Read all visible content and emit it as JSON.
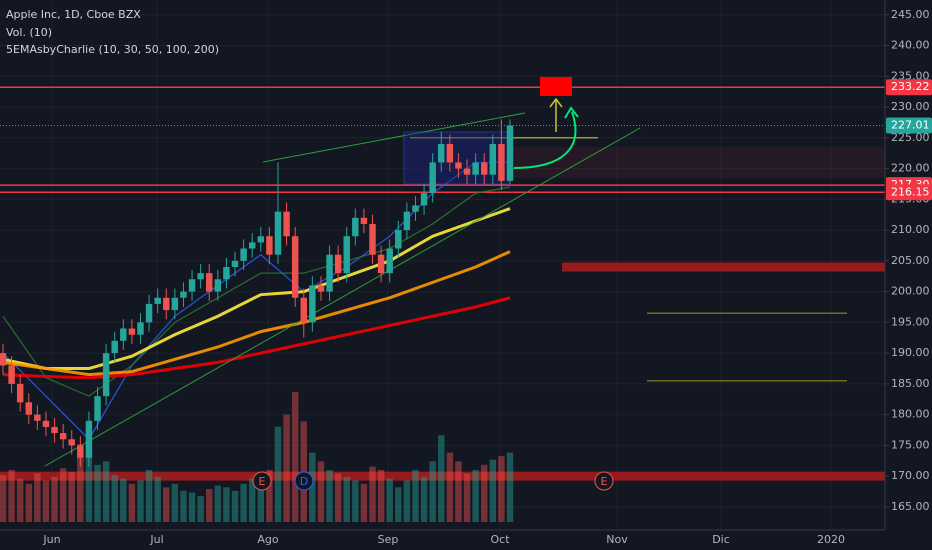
{
  "header": {
    "title": "Apple Inc, 1D, Cboe BZX",
    "volume_label": "Vol. (10)",
    "indicator_label": "5EMAsbyCharlie (10, 30, 50, 100, 200)"
  },
  "chart_data": {
    "type": "candlestick",
    "open": [
      190,
      188,
      185,
      182,
      180,
      179,
      178,
      177,
      176,
      175,
      173,
      179,
      183,
      190,
      192,
      194,
      193,
      195,
      198,
      199,
      197,
      199,
      200,
      202,
      203,
      200,
      202,
      204,
      205,
      207,
      208,
      209,
      206,
      213,
      209,
      199,
      195,
      201,
      200,
      206,
      203,
      209,
      212,
      211,
      206,
      203,
      207,
      210,
      213,
      214,
      216,
      221,
      224,
      221,
      220,
      219,
      221,
      219,
      224,
      218
    ],
    "high": [
      191.5,
      189.5,
      186.5,
      183.5,
      181.5,
      180.5,
      179.5,
      178.5,
      177.5,
      176.5,
      180.5,
      184.5,
      191.5,
      193.5,
      195.5,
      195.5,
      196.5,
      199.5,
      200.5,
      200.5,
      200.5,
      201.5,
      203.5,
      204.5,
      204.5,
      203.5,
      205.5,
      206.5,
      208.5,
      209.5,
      210.5,
      210.5,
      221,
      214.5,
      210.5,
      200.5,
      202.5,
      202.5,
      207.5,
      207.5,
      210.5,
      213.5,
      213.5,
      212.5,
      207.5,
      208.5,
      211.5,
      214.5,
      215.5,
      217.5,
      222.5,
      226,
      225.5,
      222.5,
      221.5,
      222.5,
      222.5,
      225.5,
      228,
      228
    ],
    "low": [
      186.5,
      183.5,
      180.5,
      178.5,
      177.5,
      176.5,
      175.5,
      174.5,
      173.5,
      171.5,
      171.5,
      177.5,
      181.5,
      188.5,
      190.5,
      191.5,
      191.5,
      193.5,
      196.5,
      195.5,
      195.5,
      197.5,
      198.5,
      200.5,
      198.5,
      198.5,
      200.5,
      202.5,
      203.5,
      205.5,
      206.5,
      204.5,
      204.5,
      207.5,
      197.5,
      192.5,
      193.5,
      198.5,
      198.5,
      201.5,
      201.5,
      207.5,
      209.5,
      204.5,
      201.5,
      201.5,
      205.5,
      208.5,
      211.5,
      212.5,
      214.5,
      219.5,
      219.5,
      218.5,
      217.5,
      217.5,
      217.5,
      217.5,
      216.5,
      217.5
    ],
    "close": [
      188,
      185,
      182,
      180,
      179,
      178,
      177,
      176,
      175,
      173,
      179,
      183,
      190,
      192,
      194,
      193,
      195,
      198,
      199,
      197,
      199,
      200,
      202,
      203,
      200,
      202,
      204,
      205,
      207,
      208,
      209,
      206,
      213,
      209,
      199,
      195,
      201,
      200,
      206,
      203,
      209,
      212,
      211,
      206,
      203,
      207,
      210,
      213,
      214,
      216,
      221,
      224,
      221,
      220,
      219,
      221,
      219,
      224,
      218,
      227
    ],
    "volume": [
      27,
      30,
      25,
      22,
      28,
      24,
      26,
      31,
      29,
      45,
      40,
      33,
      35,
      27,
      25,
      22,
      24,
      30,
      26,
      20,
      22,
      18,
      17,
      15,
      19,
      21,
      20,
      18,
      22,
      25,
      24,
      30,
      55,
      62,
      75,
      58,
      40,
      35,
      30,
      28,
      26,
      24,
      22,
      32,
      30,
      25,
      20,
      24,
      30,
      26,
      35,
      50,
      40,
      35,
      28,
      30,
      33,
      36,
      38,
      40
    ],
    "up_color": "#26a69a",
    "down_color": "#ef5350",
    "ema_x": [
      0,
      5,
      10,
      15,
      20,
      25,
      30,
      35,
      40,
      45,
      50,
      55,
      59
    ],
    "ema_series": [
      {
        "color": "#2962ff",
        "values": [
          190,
          183,
          176,
          188,
          196,
          201,
          206,
          200,
          204,
          209,
          216,
          221,
          221
        ]
      },
      {
        "color": "#2e7d32",
        "values": [
          196,
          186,
          183,
          188,
          195,
          199,
          203,
          203,
          205,
          207,
          211,
          216,
          217
        ]
      },
      {
        "color": "#ffeb3b",
        "values": [
          189,
          187.5,
          187.5,
          189.5,
          193,
          196,
          199.5,
          200,
          202.5,
          205,
          209,
          211.5,
          213.5
        ]
      },
      {
        "color": "#ff9800",
        "values": [
          188.5,
          187.5,
          186.5,
          187,
          189,
          191,
          193.5,
          195,
          197,
          199,
          201.5,
          204,
          206.5
        ]
      },
      {
        "color": "#f40000",
        "values": [
          186.5,
          186.2,
          186,
          186.5,
          187.5,
          188.5,
          190,
          191.5,
          193,
          194.5,
          196,
          197.5,
          199
        ]
      }
    ],
    "ylim": [
      160.6,
      247.4
    ],
    "yticks": [
      {
        "value": 165,
        "label": "165.00"
      },
      {
        "value": 170,
        "label": "170.00"
      },
      {
        "value": 175,
        "label": "175.00"
      },
      {
        "value": 180,
        "label": "180.00"
      },
      {
        "value": 185,
        "label": "185.00"
      },
      {
        "value": 190,
        "label": "190.00"
      },
      {
        "value": 195,
        "label": "195.00"
      },
      {
        "value": 200,
        "label": "200.00"
      },
      {
        "value": 205,
        "label": "205.00"
      },
      {
        "value": 210,
        "label": "210.00"
      },
      {
        "value": 215,
        "label": "215.00"
      },
      {
        "value": 220,
        "label": "220.00"
      },
      {
        "value": 225,
        "label": "225.00"
      },
      {
        "value": 230,
        "label": "230.00"
      },
      {
        "value": 235,
        "label": "235.00"
      },
      {
        "value": 240,
        "label": "240.00"
      },
      {
        "value": 245,
        "label": "245.00"
      }
    ],
    "price_tags": [
      {
        "value": 233.22,
        "label": "233.22",
        "color": "#f23645"
      },
      {
        "value": 227.01,
        "label": "227.01",
        "color": "#26a69a"
      },
      {
        "value": 217.3,
        "label": "217.30",
        "color": "#f23645"
      },
      {
        "value": 216.15,
        "label": "216.15",
        "color": "#f23645"
      }
    ],
    "levels": [
      {
        "value": 225,
        "color": "#c9c23a"
      },
      {
        "value": 204,
        "color": "#b71c1c"
      },
      {
        "value": 196.5,
        "color": "#9e9d24"
      },
      {
        "value": 185.5,
        "color": "#9e9d24"
      },
      {
        "value": 170,
        "color": "#b71c1c"
      }
    ],
    "x_labels": [
      "Jun",
      "Jul",
      "Ago",
      "Sep",
      "Oct",
      "Nov",
      "Dic",
      "2020"
    ],
    "events": [
      "E",
      "D",
      "E"
    ]
  }
}
